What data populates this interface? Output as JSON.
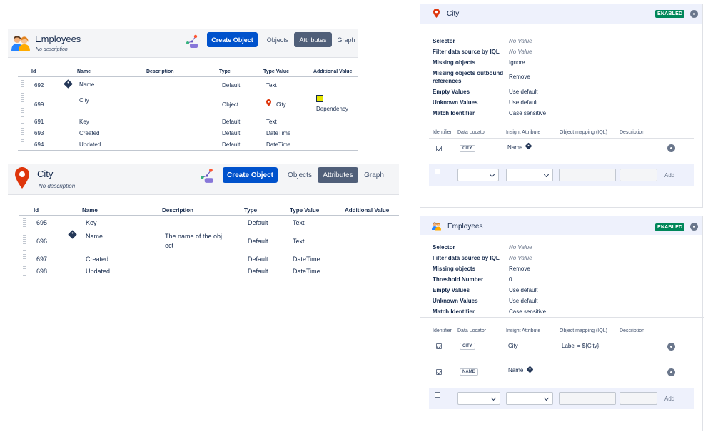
{
  "employees_ot": {
    "title": "Employees",
    "description": "No description",
    "create_label": "Create Object",
    "tabs": [
      "Objects",
      "Attributes",
      "Graph"
    ],
    "columns": [
      "Id",
      "Name",
      "Description",
      "Type",
      "Type Value",
      "Additional Value"
    ],
    "rows": [
      {
        "id": "692",
        "name": "Name",
        "description": "",
        "type": "Default",
        "type_value": "Text",
        "additional": ""
      },
      {
        "id": "699",
        "name": "City",
        "description": "",
        "type": "Object",
        "type_value": "City",
        "additional": "Dependency"
      },
      {
        "id": "691",
        "name": "Key",
        "description": "",
        "type": "Default",
        "type_value": "Text",
        "additional": ""
      },
      {
        "id": "693",
        "name": "Created",
        "description": "",
        "type": "Default",
        "type_value": "DateTime",
        "additional": ""
      },
      {
        "id": "694",
        "name": "Updated",
        "description": "",
        "type": "Default",
        "type_value": "DateTime",
        "additional": ""
      }
    ]
  },
  "city_ot": {
    "title": "City",
    "description": "No description",
    "create_label": "Create Object",
    "tabs": [
      "Objects",
      "Attributes",
      "Graph"
    ],
    "columns": [
      "Id",
      "Name",
      "Description",
      "Type",
      "Type Value",
      "Additional Value"
    ],
    "rows": [
      {
        "id": "695",
        "name": "Key",
        "description": "",
        "type": "Default",
        "type_value": "Text"
      },
      {
        "id": "696",
        "name": "Name",
        "description_l1": "The name of the obj",
        "description_l2": "ect",
        "type": "Default",
        "type_value": "Text"
      },
      {
        "id": "697",
        "name": "Created",
        "description": "",
        "type": "Default",
        "type_value": "DateTime"
      },
      {
        "id": "698",
        "name": "Updated",
        "description": "",
        "type": "Default",
        "type_value": "DateTime"
      }
    ]
  },
  "city_panel": {
    "title": "City",
    "status": "ENABLED",
    "props": [
      {
        "label": "Selector",
        "value": "No Value"
      },
      {
        "label": "Filter data source by IQL",
        "value": "No Value"
      },
      {
        "label": "Missing objects",
        "value": "Ignore"
      },
      {
        "label": "Missing objects outbound",
        "label2": "references",
        "value": "Remove"
      },
      {
        "label": "Empty Values",
        "value": "Use default"
      },
      {
        "label": "Unknown Values",
        "value": "Use default"
      },
      {
        "label": "Match Identifier",
        "value": "Case sensitive"
      }
    ],
    "map_columns": [
      "Identifier",
      "Data Locator",
      "Insight Attribute",
      "Object mapping (IQL)",
      "Description"
    ],
    "mappings": [
      {
        "locator": "CITY",
        "attribute": "Name",
        "iql": ""
      }
    ],
    "add_label": "Add"
  },
  "employees_panel": {
    "title": "Employees",
    "status": "ENABLED",
    "props": [
      {
        "label": "Selector",
        "value": "No Value"
      },
      {
        "label": "Filter data source by IQL",
        "value": "No Value"
      },
      {
        "label": "Missing objects",
        "value": "Remove"
      },
      {
        "label": "Threshold Number",
        "value": "0"
      },
      {
        "label": "Empty Values",
        "value": "Use default"
      },
      {
        "label": "Unknown Values",
        "value": "Use default"
      },
      {
        "label": "Match Identifier",
        "value": "Case sensitive"
      }
    ],
    "map_columns": [
      "Identifier",
      "Data Locator",
      "Insight Attribute",
      "Object mapping (IQL)",
      "Description"
    ],
    "mappings": [
      {
        "locator": "CITY",
        "attribute": "City",
        "iql": "Label = ${City}"
      },
      {
        "locator": "NAME",
        "attribute": "Name",
        "iql": ""
      }
    ],
    "add_label": "Add"
  },
  "colors": {
    "primary": "#0052cc",
    "enabled": "#00875a",
    "pin": "#de350b",
    "dependency": "#e6e600"
  }
}
